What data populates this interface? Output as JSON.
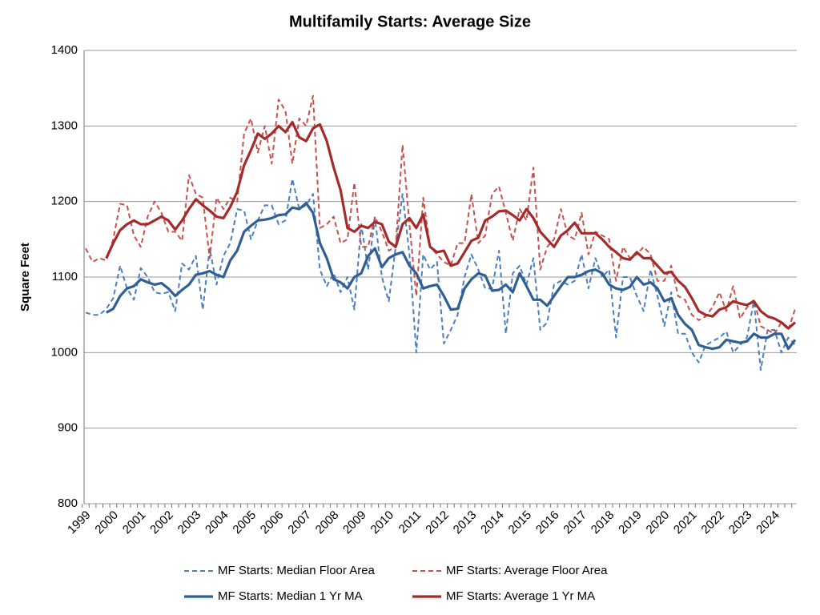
{
  "chart_data": {
    "type": "line",
    "title": "Multifamily Starts: Average Size",
    "y_label": "Square Feet",
    "categories": [
      "1999",
      null,
      null,
      null,
      "2000",
      null,
      null,
      null,
      "2001",
      null,
      null,
      null,
      "2002",
      null,
      null,
      null,
      "2003",
      null,
      null,
      null,
      "2004",
      null,
      null,
      null,
      "2005",
      null,
      null,
      null,
      "2006",
      null,
      null,
      null,
      "2007",
      null,
      null,
      null,
      "2008",
      null,
      null,
      null,
      "2009",
      null,
      null,
      null,
      "2010",
      null,
      null,
      null,
      "2011",
      null,
      null,
      null,
      "2012",
      null,
      null,
      null,
      "2013",
      null,
      null,
      null,
      "2014",
      null,
      null,
      null,
      "2015",
      null,
      null,
      null,
      "2016",
      null,
      null,
      null,
      "2017",
      null,
      null,
      null,
      "2018",
      null,
      null,
      null,
      "2019",
      null,
      null,
      null,
      "2020",
      null,
      null,
      null,
      "2021",
      null,
      null,
      null,
      "2022",
      null,
      null,
      null,
      "2023",
      null,
      null,
      null,
      "2024",
      null,
      null,
      null
    ],
    "ylim": [
      800,
      1400
    ],
    "yticks": [
      800,
      900,
      1000,
      1100,
      1200,
      1300,
      1400
    ],
    "grid": true,
    "series": [
      {
        "name": "MF Starts: Median Floor Area",
        "color": "#4a7fbf",
        "style": "dashed",
        "values": [
          1053,
          1050,
          1050,
          1058,
          1072,
          1115,
          1085,
          1070,
          1112,
          1100,
          1080,
          1078,
          1080,
          1055,
          1118,
          1110,
          1128,
          1057,
          1138,
          1090,
          1128,
          1145,
          1190,
          1188,
          1150,
          1175,
          1195,
          1195,
          1170,
          1175,
          1230,
          1190,
          1195,
          1210,
          1110,
          1088,
          1105,
          1080,
          1100,
          1057,
          1170,
          1110,
          1178,
          1100,
          1068,
          1140,
          1210,
          1130,
          1000,
          1130,
          1110,
          1120,
          1012,
          1030,
          1050,
          1100,
          1130,
          1110,
          1085,
          1085,
          1135,
          1025,
          1105,
          1115,
          1090,
          1125,
          1030,
          1040,
          1090,
          1095,
          1090,
          1095,
          1130,
          1085,
          1125,
          1100,
          1110,
          1020,
          1100,
          1100,
          1075,
          1055,
          1110,
          1075,
          1035,
          1080,
          1025,
          1025,
          1000,
          987,
          1010,
          1015,
          1020,
          1028,
          1000,
          1010,
          1020,
          1068,
          977,
          1030,
          1030,
          1000,
          1020,
          1010
        ]
      },
      {
        "name": "MF Starts: Average Floor Area",
        "color": "#c9504d",
        "style": "dashed",
        "values": [
          1138,
          1120,
          1125,
          1122,
          1150,
          1197,
          1195,
          1155,
          1140,
          1180,
          1200,
          1185,
          1160,
          1160,
          1148,
          1235,
          1210,
          1205,
          1125,
          1205,
          1190,
          1205,
          1200,
          1290,
          1310,
          1265,
          1300,
          1250,
          1335,
          1320,
          1250,
          1310,
          1300,
          1340,
          1165,
          1170,
          1180,
          1145,
          1150,
          1225,
          1140,
          1140,
          1180,
          1160,
          1135,
          1140,
          1275,
          1170,
          1075,
          1205,
          1140,
          1130,
          1120,
          1115,
          1145,
          1145,
          1210,
          1145,
          1155,
          1210,
          1220,
          1185,
          1148,
          1190,
          1175,
          1245,
          1110,
          1140,
          1150,
          1190,
          1155,
          1150,
          1185,
          1130,
          1160,
          1155,
          1150,
          1095,
          1140,
          1125,
          1130,
          1140,
          1130,
          1095,
          1095,
          1115,
          1075,
          1070,
          1050,
          1043,
          1048,
          1060,
          1080,
          1055,
          1088,
          1045,
          1060,
          1070,
          1035,
          1030,
          1025,
          1040,
          1030,
          1058
        ]
      },
      {
        "name": "MF Starts: Median 1 Yr MA",
        "color": "#2f5f93",
        "style": "solid",
        "values": [
          null,
          null,
          null,
          1053,
          1058,
          1075,
          1085,
          1088,
          1097,
          1093,
          1090,
          1092,
          1085,
          1075,
          1083,
          1090,
          1103,
          1105,
          1108,
          1103,
          1100,
          1122,
          1135,
          1160,
          1168,
          1175,
          1176,
          1178,
          1182,
          1183,
          1192,
          1190,
          1198,
          1185,
          1145,
          1125,
          1097,
          1093,
          1085,
          1100,
          1105,
          1128,
          1138,
          1113,
          1125,
          1130,
          1133,
          1115,
          1105,
          1085,
          1088,
          1090,
          1075,
          1057,
          1058,
          1085,
          1097,
          1105,
          1102,
          1082,
          1083,
          1090,
          1080,
          1105,
          1088,
          1070,
          1070,
          1062,
          1075,
          1088,
          1100,
          1100,
          1103,
          1108,
          1110,
          1105,
          1090,
          1085,
          1083,
          1087,
          1100,
          1090,
          1093,
          1085,
          1068,
          1072,
          1050,
          1038,
          1030,
          1010,
          1007,
          1005,
          1007,
          1017,
          1015,
          1013,
          1015,
          1025,
          1020,
          1020,
          1025,
          1025,
          1005,
          1017
        ]
      },
      {
        "name": "MF Starts: Average 1 Yr MA",
        "color": "#a52a2a",
        "style": "solid",
        "values": [
          null,
          null,
          null,
          1125,
          1145,
          1162,
          1170,
          1175,
          1170,
          1170,
          1175,
          1180,
          1175,
          1163,
          1175,
          1190,
          1203,
          1195,
          1188,
          1180,
          1178,
          1193,
          1213,
          1248,
          1268,
          1290,
          1283,
          1290,
          1300,
          1292,
          1305,
          1285,
          1280,
          1297,
          1302,
          1280,
          1245,
          1215,
          1165,
          1160,
          1168,
          1165,
          1173,
          1170,
          1147,
          1140,
          1170,
          1178,
          1165,
          1183,
          1140,
          1133,
          1135,
          1115,
          1118,
          1133,
          1148,
          1152,
          1175,
          1180,
          1187,
          1188,
          1182,
          1175,
          1190,
          1178,
          1160,
          1150,
          1140,
          1155,
          1162,
          1172,
          1158,
          1158,
          1158,
          1150,
          1140,
          1133,
          1125,
          1123,
          1133,
          1125,
          1125,
          1115,
          1105,
          1107,
          1095,
          1087,
          1072,
          1055,
          1050,
          1048,
          1057,
          1060,
          1068,
          1065,
          1063,
          1068,
          1055,
          1048,
          1045,
          1040,
          1032,
          1040
        ]
      }
    ]
  }
}
